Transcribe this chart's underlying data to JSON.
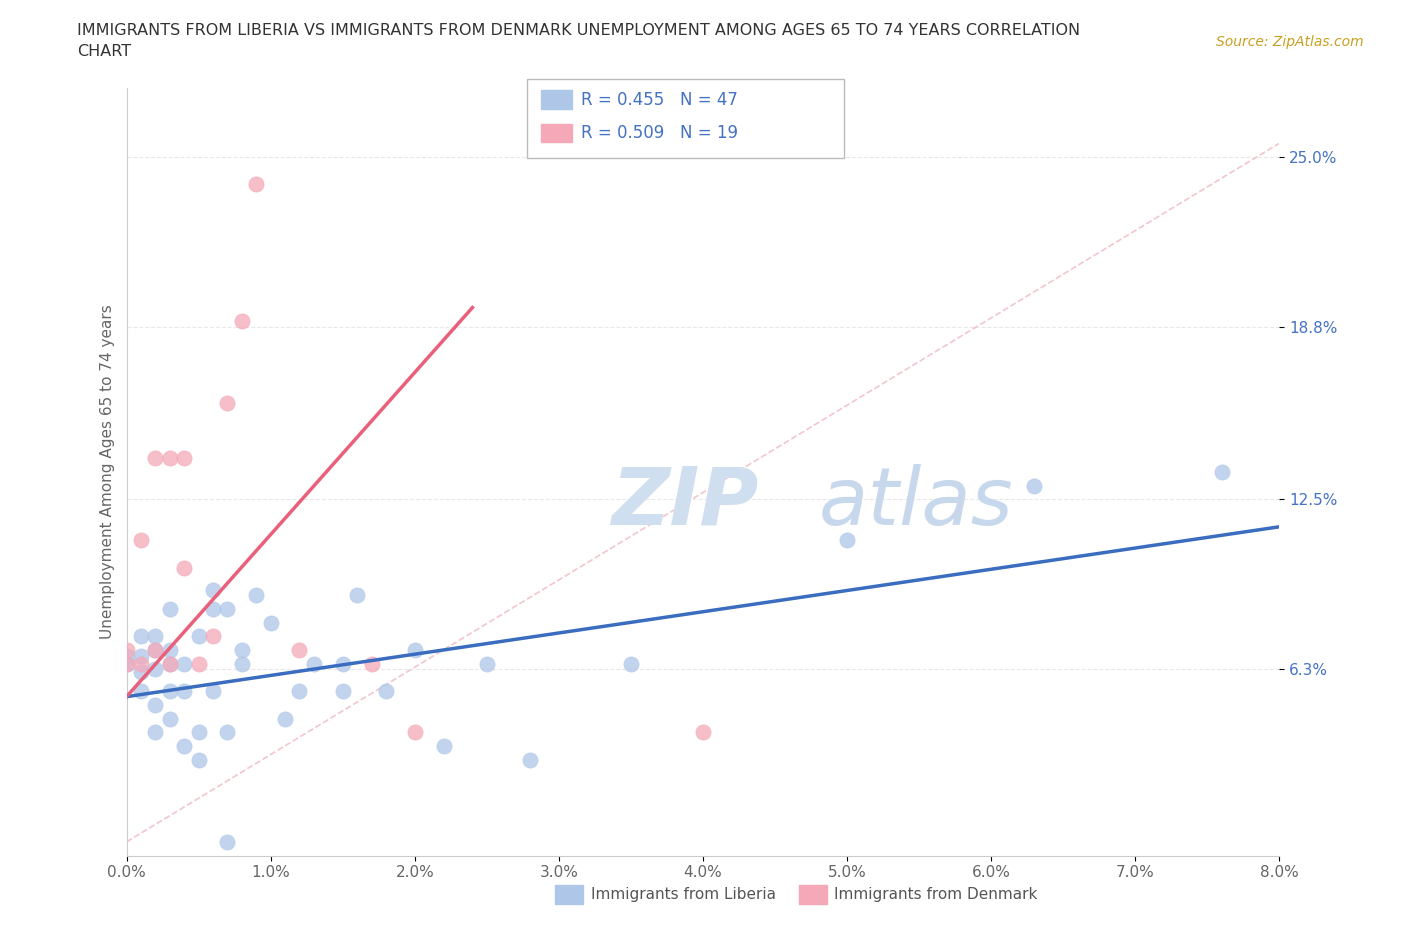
{
  "title_line1": "IMMIGRANTS FROM LIBERIA VS IMMIGRANTS FROM DENMARK UNEMPLOYMENT AMONG AGES 65 TO 74 YEARS CORRELATION",
  "title_line2": "CHART",
  "source_text": "Source: ZipAtlas.com",
  "ylabel": "Unemployment Among Ages 65 to 74 years",
  "xlim": [
    0.0,
    0.08
  ],
  "ylim": [
    -0.005,
    0.275
  ],
  "xticks": [
    0.0,
    0.01,
    0.02,
    0.03,
    0.04,
    0.05,
    0.06,
    0.07,
    0.08
  ],
  "xticklabels": [
    "0.0%",
    "1.0%",
    "2.0%",
    "3.0%",
    "4.0%",
    "5.0%",
    "6.0%",
    "7.0%",
    "8.0%"
  ],
  "ytick_positions": [
    0.063,
    0.125,
    0.188,
    0.25
  ],
  "ytick_labels": [
    "6.3%",
    "12.5%",
    "18.8%",
    "25.0%"
  ],
  "liberia_color": "#aec6e8",
  "denmark_color": "#f4a8b8",
  "liberia_line_color": "#3a6dbf",
  "denmark_line_color": "#e8607a",
  "ref_line_color": "#f0c0c8",
  "legend_label1": "R = 0.455   N = 47",
  "legend_label2": "R = 0.509   N = 19",
  "watermark_zip": "ZIP",
  "watermark_atlas": "atlas",
  "bottom_legend_liberia": "Immigrants from Liberia",
  "bottom_legend_denmark": "Immigrants from Denmark",
  "liberia_x": [
    0.0,
    0.0,
    0.001,
    0.001,
    0.001,
    0.001,
    0.002,
    0.002,
    0.002,
    0.002,
    0.002,
    0.003,
    0.003,
    0.003,
    0.003,
    0.003,
    0.004,
    0.004,
    0.004,
    0.005,
    0.005,
    0.005,
    0.006,
    0.006,
    0.006,
    0.007,
    0.007,
    0.007,
    0.008,
    0.008,
    0.009,
    0.01,
    0.011,
    0.012,
    0.013,
    0.015,
    0.015,
    0.016,
    0.018,
    0.02,
    0.022,
    0.025,
    0.028,
    0.035,
    0.05,
    0.063,
    0.076
  ],
  "liberia_y": [
    0.065,
    0.068,
    0.055,
    0.062,
    0.068,
    0.075,
    0.04,
    0.05,
    0.063,
    0.07,
    0.075,
    0.045,
    0.055,
    0.065,
    0.07,
    0.085,
    0.035,
    0.055,
    0.065,
    0.03,
    0.04,
    0.075,
    0.055,
    0.085,
    0.092,
    0.0,
    0.04,
    0.085,
    0.07,
    0.065,
    0.09,
    0.08,
    0.045,
    0.055,
    0.065,
    0.055,
    0.065,
    0.09,
    0.055,
    0.07,
    0.035,
    0.065,
    0.03,
    0.065,
    0.11,
    0.13,
    0.135
  ],
  "denmark_x": [
    0.0,
    0.0,
    0.001,
    0.001,
    0.002,
    0.002,
    0.003,
    0.003,
    0.004,
    0.004,
    0.005,
    0.006,
    0.007,
    0.008,
    0.009,
    0.012,
    0.017,
    0.02,
    0.04
  ],
  "denmark_y": [
    0.065,
    0.07,
    0.065,
    0.11,
    0.07,
    0.14,
    0.065,
    0.14,
    0.1,
    0.14,
    0.065,
    0.075,
    0.16,
    0.19,
    0.24,
    0.07,
    0.065,
    0.04,
    0.04
  ],
  "liberia_trendline_x": [
    0.0,
    0.08
  ],
  "liberia_trendline_y": [
    0.053,
    0.115
  ],
  "denmark_trendline_x": [
    0.0,
    0.024
  ],
  "denmark_trendline_y": [
    0.053,
    0.195
  ],
  "ref_line_x": [
    0.0,
    0.08
  ],
  "ref_line_y": [
    0.0,
    0.255
  ],
  "background_color": "#ffffff",
  "grid_color": "#e8e8e8"
}
